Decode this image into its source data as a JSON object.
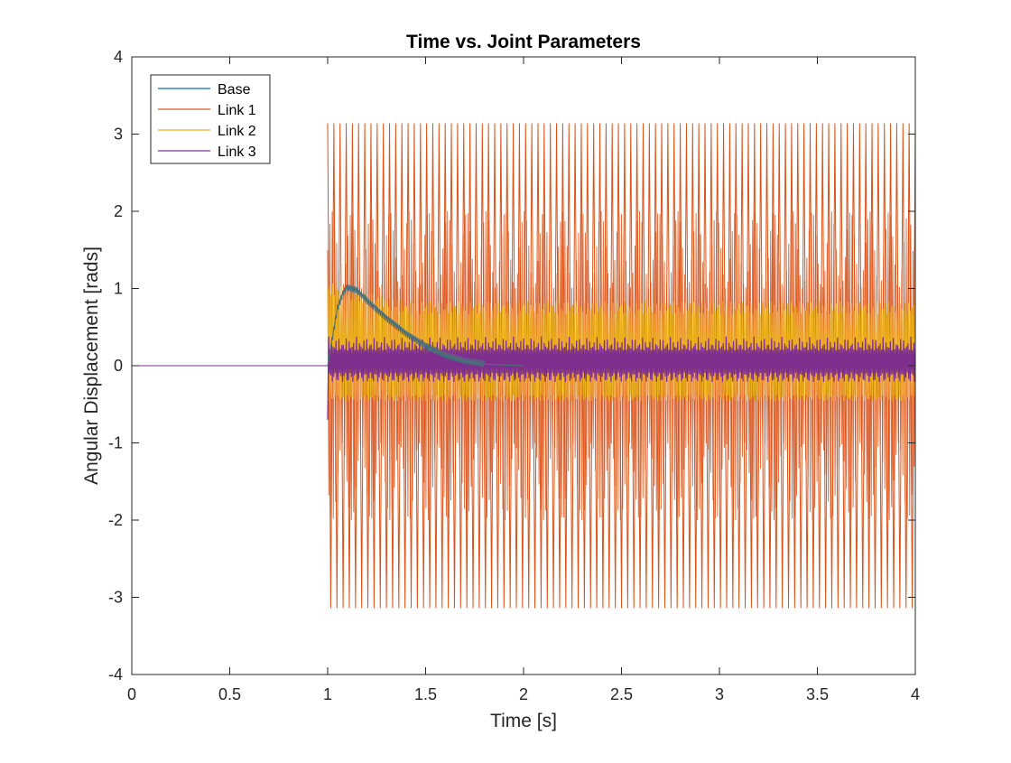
{
  "chart_data": {
    "type": "line",
    "title": "Time vs. Joint Parameters",
    "xlabel": "Time [s]",
    "ylabel": "Angular Displacement [rads]",
    "xlim": [
      0,
      4
    ],
    "ylim": [
      -4,
      4
    ],
    "xticks": [
      0,
      0.5,
      1,
      1.5,
      2,
      2.5,
      3,
      3.5,
      4
    ],
    "xtick_labels": [
      "0",
      "0.5",
      "1",
      "1.5",
      "2",
      "2.5",
      "3",
      "3.5",
      "4"
    ],
    "yticks": [
      -4,
      -3,
      -2,
      -1,
      0,
      1,
      2,
      3,
      4
    ],
    "ytick_labels": [
      "-4",
      "-3",
      "-2",
      "-1",
      "0",
      "1",
      "2",
      "3",
      "4"
    ],
    "grid": false,
    "legend_position": "top-left",
    "series": [
      {
        "name": "Base",
        "color": "#0072BD",
        "x": [
          0,
          1.0,
          1.02,
          1.05,
          1.08,
          1.1,
          1.15,
          1.2,
          1.3,
          1.4,
          1.5,
          1.6,
          1.7,
          1.8,
          2.0,
          2.5,
          3.0,
          3.5,
          4.0
        ],
        "values": [
          0,
          0,
          0.3,
          0.75,
          0.95,
          1.02,
          0.98,
          0.85,
          0.62,
          0.42,
          0.26,
          0.14,
          0.06,
          0.02,
          0,
          0,
          0,
          0,
          0
        ]
      },
      {
        "name": "Link 1",
        "color": "#D95319",
        "x": [
          0,
          1.0,
          1.0,
          4.0
        ],
        "values": [
          0,
          0,
          3.14,
          3.14
        ],
        "envelope": {
          "start": 1.0,
          "end": 4.0,
          "upper": 3.14,
          "lower": -3.14,
          "oscillation": "rapid wrap between -3.14 and 3.14"
        }
      },
      {
        "name": "Link 2",
        "color": "#EDB120",
        "x": [
          0,
          1.0,
          1.1,
          1.5,
          2.0,
          4.0
        ],
        "values": [
          0,
          0,
          1.0,
          0.75,
          0.75,
          0.75
        ],
        "envelope": {
          "start": 1.0,
          "end": 4.0,
          "upper": 0.75,
          "lower": -0.42,
          "oscillation": "dense oscillation"
        }
      },
      {
        "name": "Link 3",
        "color": "#7E2F8E",
        "x": [
          0,
          1.0,
          1.0,
          4.0
        ],
        "values": [
          0,
          0,
          -0.7,
          -0.15
        ],
        "envelope": {
          "start": 1.0,
          "end": 4.0,
          "upper": 0.38,
          "lower": -0.15,
          "oscillation": "dense oscillation"
        }
      }
    ]
  }
}
